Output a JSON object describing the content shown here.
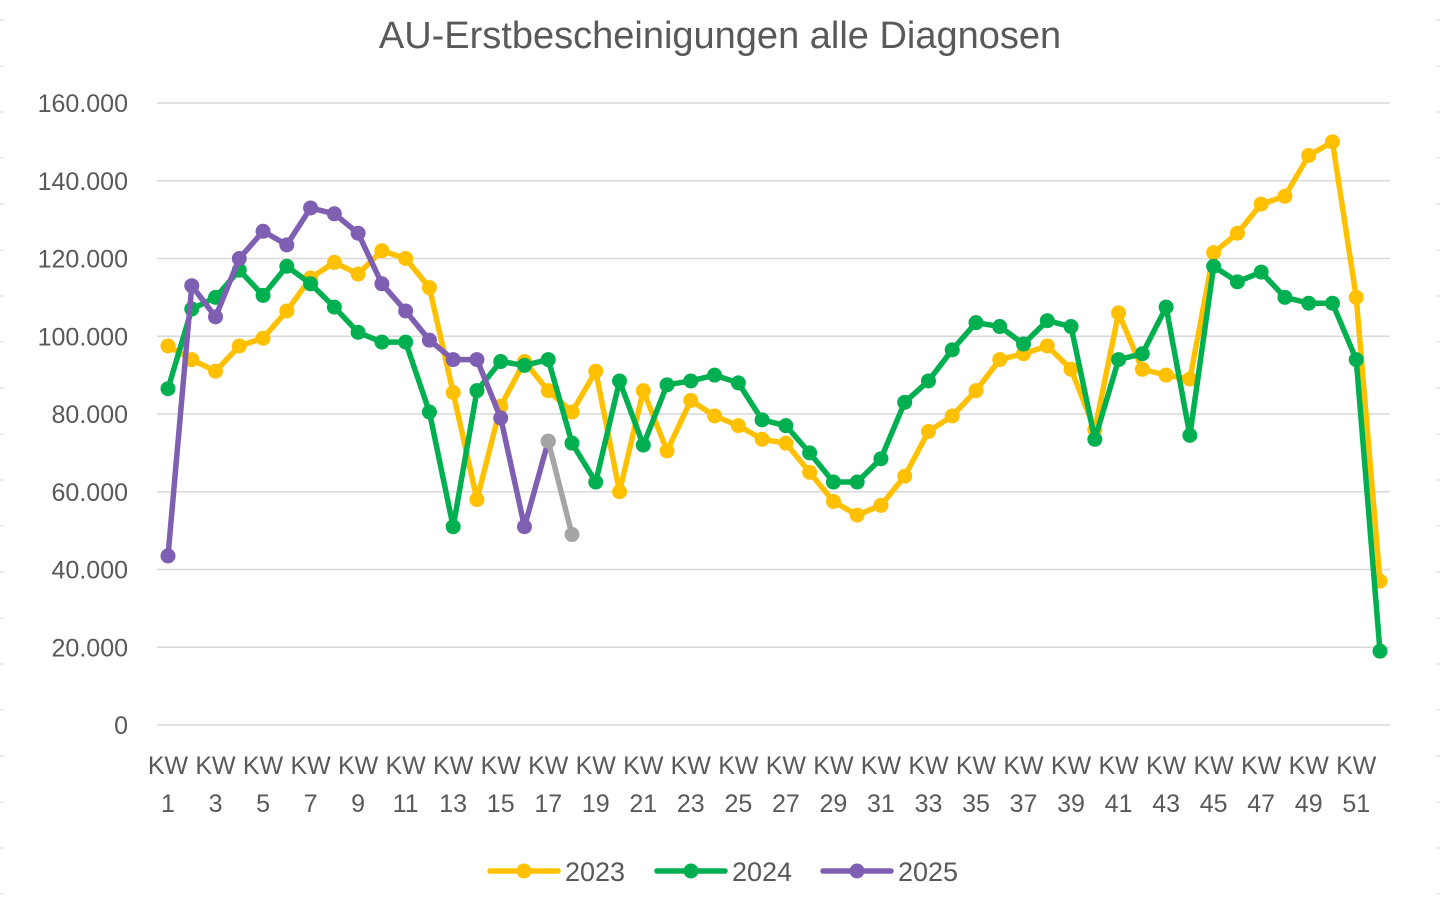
{
  "chart_data": {
    "type": "line",
    "title": "AU-Erstbescheinigungen alle Diagnosen",
    "xlabel": "",
    "ylabel": "",
    "ylim": [
      0,
      160000
    ],
    "yticks": [
      0,
      20000,
      40000,
      60000,
      80000,
      100000,
      120000,
      140000,
      160000
    ],
    "ytick_labels": [
      "0",
      "20.000",
      "40.000",
      "60.000",
      "80.000",
      "100.000",
      "120.000",
      "140.000",
      "160.000"
    ],
    "x": [
      1,
      2,
      3,
      4,
      5,
      6,
      7,
      8,
      9,
      10,
      11,
      12,
      13,
      14,
      15,
      16,
      17,
      18,
      19,
      20,
      21,
      22,
      23,
      24,
      25,
      26,
      27,
      28,
      29,
      30,
      31,
      32,
      33,
      34,
      35,
      36,
      37,
      38,
      39,
      40,
      41,
      42,
      43,
      44,
      45,
      46,
      47,
      48,
      49,
      50,
      51,
      52
    ],
    "x_tick_labels": [
      {
        "line1": "KW",
        "line2": "1"
      },
      {
        "line1": "KW",
        "line2": "3"
      },
      {
        "line1": "KW",
        "line2": "5"
      },
      {
        "line1": "KW",
        "line2": "7"
      },
      {
        "line1": "KW",
        "line2": "9"
      },
      {
        "line1": "KW",
        "line2": "11"
      },
      {
        "line1": "KW",
        "line2": "13"
      },
      {
        "line1": "KW",
        "line2": "15"
      },
      {
        "line1": "KW",
        "line2": "17"
      },
      {
        "line1": "KW",
        "line2": "19"
      },
      {
        "line1": "KW",
        "line2": "21"
      },
      {
        "line1": "KW",
        "line2": "23"
      },
      {
        "line1": "KW",
        "line2": "25"
      },
      {
        "line1": "KW",
        "line2": "27"
      },
      {
        "line1": "KW",
        "line2": "29"
      },
      {
        "line1": "KW",
        "line2": "31"
      },
      {
        "line1": "KW",
        "line2": "33"
      },
      {
        "line1": "KW",
        "line2": "35"
      },
      {
        "line1": "KW",
        "line2": "37"
      },
      {
        "line1": "KW",
        "line2": "39"
      },
      {
        "line1": "KW",
        "line2": "41"
      },
      {
        "line1": "KW",
        "line2": "43"
      },
      {
        "line1": "KW",
        "line2": "45"
      },
      {
        "line1": "KW",
        "line2": "47"
      },
      {
        "line1": "KW",
        "line2": "49"
      },
      {
        "line1": "KW",
        "line2": "51"
      }
    ],
    "grid": true,
    "legend_position": "bottom",
    "series": [
      {
        "name": "2023",
        "color": "#ffc000",
        "values": [
          97500,
          94000,
          91000,
          97500,
          99500,
          106500,
          115000,
          119000,
          116000,
          122000,
          120000,
          112500,
          85500,
          58000,
          82000,
          93500,
          86000,
          80500,
          91000,
          60000,
          86000,
          70500,
          83500,
          79500,
          77000,
          73500,
          72500,
          65000,
          57500,
          54000,
          56500,
          64000,
          75500,
          79500,
          86000,
          94000,
          95500,
          97500,
          91500,
          76000,
          106000,
          91500,
          90000,
          89000,
          121500,
          126500,
          134000,
          136000,
          146500,
          150000,
          110000,
          37000
        ]
      },
      {
        "name": "2024",
        "color": "#00b050",
        "values": [
          86500,
          107000,
          110000,
          117000,
          110500,
          118000,
          113500,
          107500,
          101000,
          98500,
          98500,
          80500,
          51000,
          86000,
          93500,
          92500,
          94000,
          72500,
          62500,
          88500,
          72000,
          87500,
          88500,
          90000,
          88000,
          78500,
          77000,
          70000,
          62500,
          62500,
          68500,
          83000,
          88500,
          96500,
          103500,
          102500,
          98000,
          104000,
          102500,
          73500,
          94000,
          95500,
          107500,
          74500,
          118000,
          114000,
          116500,
          110000,
          108500,
          108500,
          94000,
          19000
        ]
      },
      {
        "name": "2025",
        "color": "#7e5fb2",
        "values": [
          43500,
          113000,
          105000,
          120000,
          127000,
          123500,
          133000,
          131500,
          126500,
          113500,
          106500,
          99000,
          94000,
          94000,
          79000,
          51000,
          73000,
          null,
          null,
          null,
          null,
          null,
          null,
          null,
          null,
          null,
          null,
          null,
          null,
          null,
          null,
          null,
          null,
          null,
          null,
          null,
          null,
          null,
          null,
          null,
          null,
          null,
          null,
          null,
          null,
          null,
          null,
          null,
          null,
          null,
          null,
          null
        ]
      },
      {
        "color": "#a5a5a5",
        "values": [
          null,
          null,
          null,
          null,
          null,
          null,
          null,
          null,
          null,
          null,
          null,
          null,
          null,
          null,
          null,
          null,
          73000,
          49000,
          null,
          null,
          null,
          null,
          null,
          null,
          null,
          null,
          null,
          null,
          null,
          null,
          null,
          null,
          null,
          null,
          null,
          null,
          null,
          null,
          null,
          null,
          null,
          null,
          null,
          null,
          null,
          null,
          null,
          null,
          null,
          null,
          null,
          null
        ]
      }
    ]
  }
}
